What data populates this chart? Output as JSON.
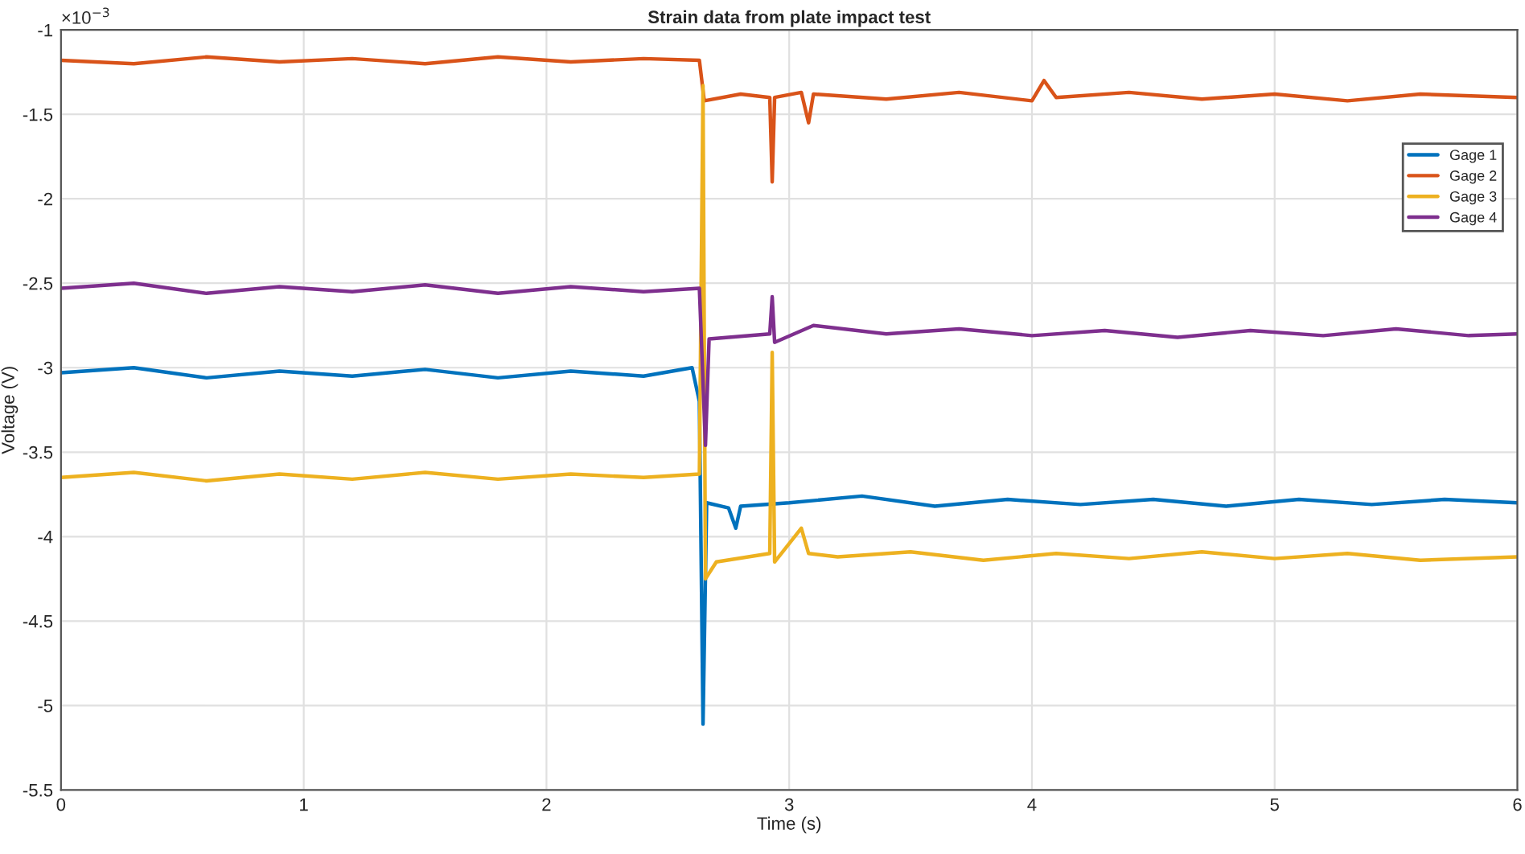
{
  "chart_data": {
    "type": "line",
    "title": "Strain data from plate impact test",
    "xlabel": "Time (s)",
    "ylabel": "Voltage (V)",
    "annotations": [
      "×10$^{−3}$"
    ],
    "xlim": [
      0,
      6
    ],
    "xticks": [
      0,
      1,
      2,
      3,
      4,
      5,
      6
    ],
    "ylim": [
      -5.5,
      -1
    ],
    "yticks": [
      -5.5,
      -5,
      -4.5,
      -4,
      -3.5,
      -3,
      -2.5,
      -2,
      -1.5,
      -1
    ],
    "grid": true,
    "legend": "top right",
    "marker": "none",
    "line_style": "solid",
    "series": [
      {
        "name": "Gage 1",
        "color": "#0072bd",
        "x": [
          0,
          0.3,
          0.6,
          0.9,
          1.2,
          1.5,
          1.8,
          2.1,
          2.4,
          2.6,
          2.63,
          2.645,
          2.66,
          2.75,
          2.78,
          2.8,
          3.0,
          3.3,
          3.6,
          3.9,
          4.2,
          4.5,
          4.8,
          5.1,
          5.4,
          5.7,
          6.0
        ],
        "values": [
          -3.03,
          -3.0,
          -3.06,
          -3.02,
          -3.05,
          -3.01,
          -3.06,
          -3.02,
          -3.05,
          -3.0,
          -3.2,
          -5.11,
          -3.8,
          -3.83,
          -3.95,
          -3.82,
          -3.8,
          -3.76,
          -3.82,
          -3.78,
          -3.81,
          -3.78,
          -3.82,
          -3.78,
          -3.81,
          -3.78,
          -3.8
        ]
      },
      {
        "name": "Gage 2",
        "color": "#d95319",
        "x": [
          0,
          0.3,
          0.6,
          0.9,
          1.2,
          1.5,
          1.8,
          2.1,
          2.4,
          2.63,
          2.65,
          2.8,
          2.92,
          2.93,
          2.94,
          3.05,
          3.08,
          3.1,
          3.4,
          3.7,
          4.0,
          4.05,
          4.1,
          4.4,
          4.7,
          5.0,
          5.3,
          5.6,
          6.0
        ],
        "values": [
          -1.18,
          -1.2,
          -1.16,
          -1.19,
          -1.17,
          -1.2,
          -1.16,
          -1.19,
          -1.17,
          -1.18,
          -1.42,
          -1.38,
          -1.4,
          -1.9,
          -1.4,
          -1.37,
          -1.55,
          -1.38,
          -1.41,
          -1.37,
          -1.42,
          -1.3,
          -1.4,
          -1.37,
          -1.41,
          -1.38,
          -1.42,
          -1.38,
          -1.4
        ]
      },
      {
        "name": "Gage 3",
        "color": "#edb120",
        "x": [
          0,
          0.3,
          0.6,
          0.9,
          1.2,
          1.5,
          1.8,
          2.1,
          2.4,
          2.63,
          2.645,
          2.655,
          2.7,
          2.92,
          2.93,
          2.94,
          3.05,
          3.08,
          3.2,
          3.5,
          3.8,
          4.1,
          4.4,
          4.7,
          5.0,
          5.3,
          5.6,
          6.0
        ],
        "values": [
          -3.65,
          -3.62,
          -3.67,
          -3.63,
          -3.66,
          -3.62,
          -3.66,
          -3.63,
          -3.65,
          -3.63,
          -1.33,
          -4.25,
          -4.15,
          -4.1,
          -2.91,
          -4.15,
          -3.95,
          -4.1,
          -4.12,
          -4.09,
          -4.14,
          -4.1,
          -4.13,
          -4.09,
          -4.13,
          -4.1,
          -4.14,
          -4.12
        ]
      },
      {
        "name": "Gage 4",
        "color": "#7e2f8e",
        "x": [
          0,
          0.3,
          0.6,
          0.9,
          1.2,
          1.5,
          1.8,
          2.1,
          2.4,
          2.63,
          2.655,
          2.67,
          2.92,
          2.93,
          2.94,
          3.1,
          3.4,
          3.7,
          4.0,
          4.3,
          4.6,
          4.9,
          5.2,
          5.5,
          5.8,
          6.0
        ],
        "values": [
          -2.53,
          -2.5,
          -2.56,
          -2.52,
          -2.55,
          -2.51,
          -2.56,
          -2.52,
          -2.55,
          -2.53,
          -3.46,
          -2.83,
          -2.8,
          -2.58,
          -2.85,
          -2.75,
          -2.8,
          -2.77,
          -2.81,
          -2.78,
          -2.82,
          -2.78,
          -2.81,
          -2.77,
          -2.81,
          -2.8
        ]
      }
    ]
  }
}
